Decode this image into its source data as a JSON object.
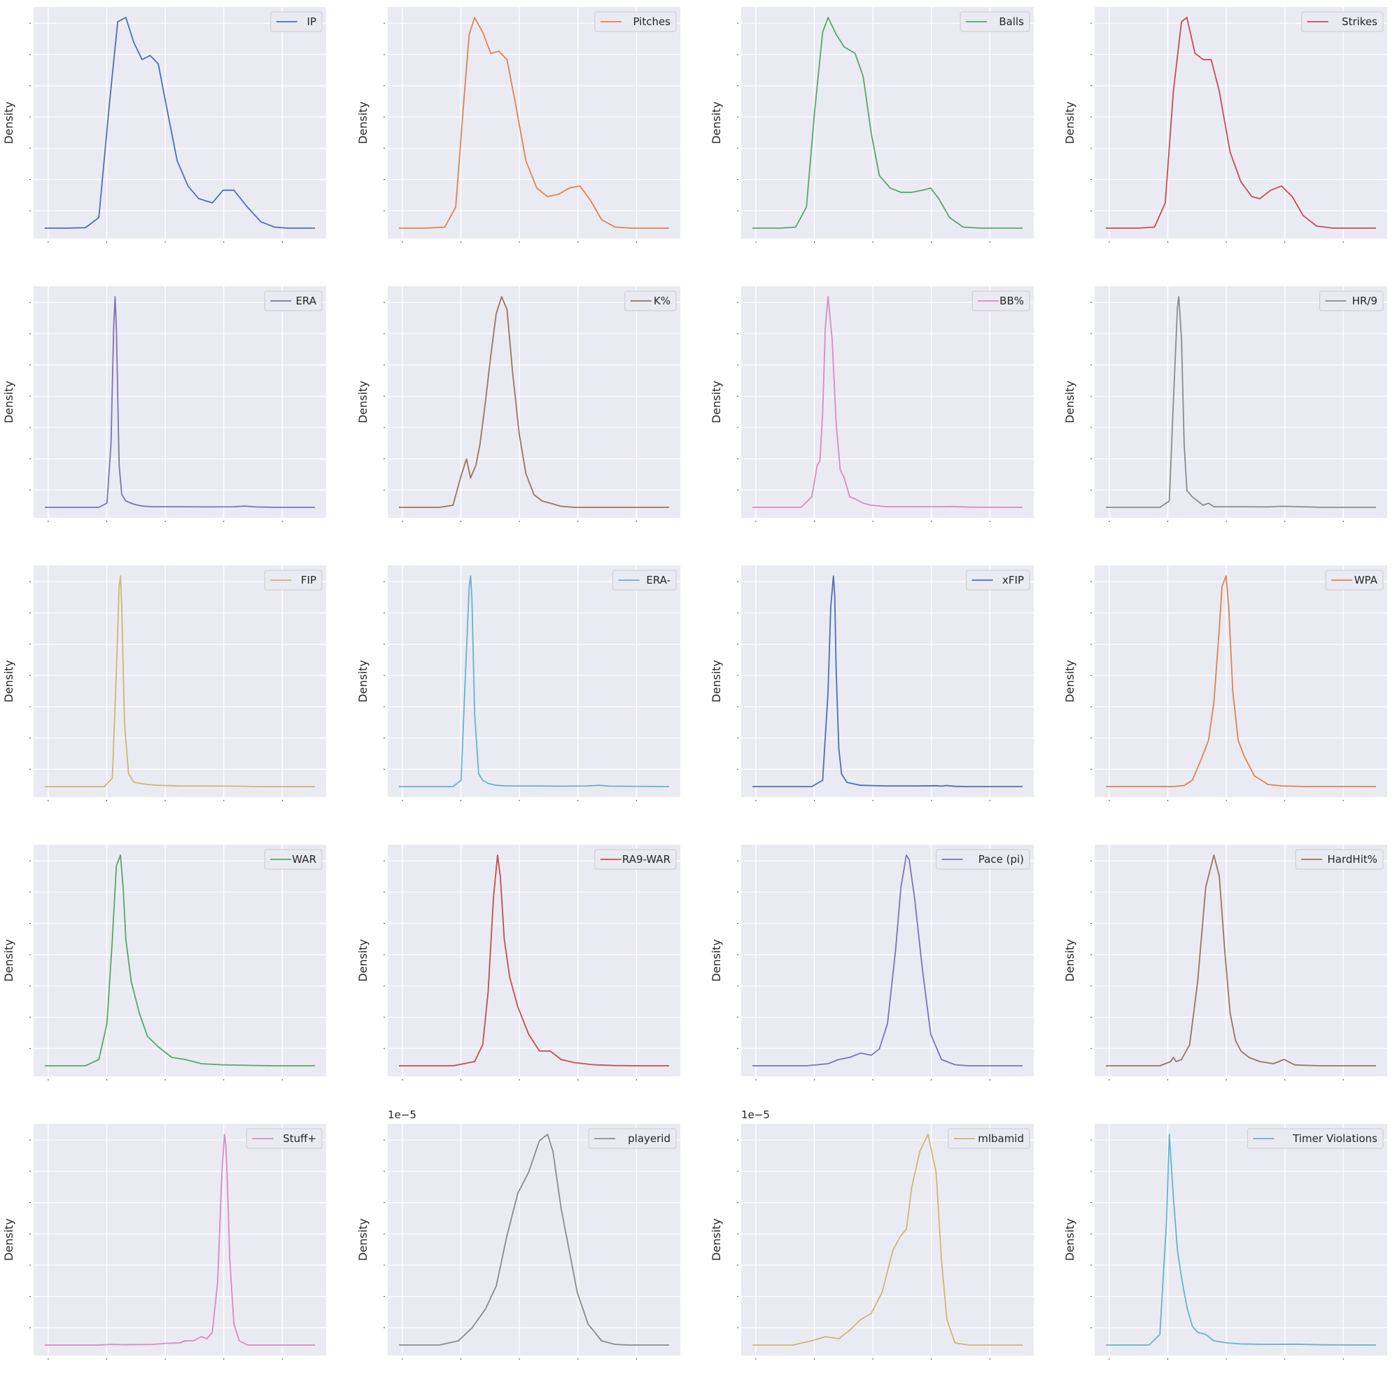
{
  "page": {
    "background": "#ffffff",
    "plot_bg": "#eaeaf2",
    "grid_color": "#ffffff"
  },
  "chart_data": [
    {
      "type": "line",
      "series": [
        {
          "name": "IP",
          "color": "#4c72b0"
        }
      ],
      "ylabel": "Density",
      "offset_label": "",
      "legend": "top-right",
      "grid": true,
      "x": [
        0.0,
        0.08,
        0.15,
        0.2,
        0.24,
        0.27,
        0.3,
        0.33,
        0.36,
        0.39,
        0.42,
        0.45,
        0.49,
        0.53,
        0.57,
        0.62,
        0.66,
        0.7,
        0.75,
        0.8,
        0.85,
        0.9,
        1.0
      ],
      "y": [
        0.0,
        0.0,
        0.002,
        0.05,
        0.6,
        0.98,
        1.0,
        0.88,
        0.8,
        0.82,
        0.78,
        0.58,
        0.32,
        0.2,
        0.14,
        0.12,
        0.18,
        0.18,
        0.1,
        0.03,
        0.005,
        0.0,
        0.0
      ]
    },
    {
      "type": "line",
      "series": [
        {
          "name": "Pitches",
          "color": "#dd8452"
        }
      ],
      "ylabel": "Density",
      "offset_label": "",
      "legend": "top-right",
      "grid": true,
      "x": [
        0.0,
        0.1,
        0.17,
        0.21,
        0.24,
        0.26,
        0.28,
        0.31,
        0.34,
        0.37,
        0.4,
        0.43,
        0.47,
        0.51,
        0.55,
        0.59,
        0.63,
        0.67,
        0.71,
        0.75,
        0.8,
        0.86,
        1.0
      ],
      "y": [
        0.0,
        0.0,
        0.005,
        0.1,
        0.6,
        0.92,
        1.0,
        0.93,
        0.83,
        0.84,
        0.8,
        0.6,
        0.32,
        0.19,
        0.15,
        0.16,
        0.19,
        0.2,
        0.13,
        0.04,
        0.005,
        0.0,
        0.0
      ]
    },
    {
      "type": "line",
      "series": [
        {
          "name": "Balls",
          "color": "#55a868"
        }
      ],
      "ylabel": "Density",
      "offset_label": "",
      "legend": "top-right",
      "grid": true,
      "x": [
        0.0,
        0.1,
        0.16,
        0.2,
        0.23,
        0.26,
        0.28,
        0.31,
        0.34,
        0.38,
        0.41,
        0.44,
        0.47,
        0.51,
        0.55,
        0.59,
        0.63,
        0.66,
        0.69,
        0.73,
        0.78,
        0.85,
        1.0
      ],
      "y": [
        0.0,
        0.0,
        0.005,
        0.1,
        0.55,
        0.93,
        1.0,
        0.92,
        0.86,
        0.83,
        0.72,
        0.45,
        0.25,
        0.19,
        0.17,
        0.17,
        0.18,
        0.19,
        0.14,
        0.05,
        0.005,
        0.0,
        0.0
      ]
    },
    {
      "type": "line",
      "series": [
        {
          "name": "Strikes",
          "color": "#c44e52"
        }
      ],
      "ylabel": "Density",
      "offset_label": "",
      "legend": "top-right",
      "grid": true,
      "x": [
        0.0,
        0.12,
        0.18,
        0.22,
        0.25,
        0.28,
        0.3,
        0.33,
        0.36,
        0.39,
        0.42,
        0.46,
        0.5,
        0.54,
        0.57,
        0.61,
        0.65,
        0.69,
        0.73,
        0.78,
        0.84,
        0.9,
        1.0
      ],
      "y": [
        0.0,
        0.0,
        0.005,
        0.12,
        0.65,
        0.98,
        1.0,
        0.83,
        0.8,
        0.8,
        0.65,
        0.36,
        0.22,
        0.15,
        0.14,
        0.18,
        0.2,
        0.15,
        0.06,
        0.01,
        0.0,
        0.0,
        0.0
      ]
    },
    {
      "type": "line",
      "series": [
        {
          "name": "ERA",
          "color": "#8172b3"
        }
      ],
      "ylabel": "Density",
      "offset_label": "",
      "legend": "top-right",
      "grid": true,
      "x": [
        0.0,
        0.2,
        0.23,
        0.245,
        0.255,
        0.26,
        0.265,
        0.275,
        0.285,
        0.3,
        0.33,
        0.36,
        0.4,
        0.5,
        0.6,
        0.7,
        0.74,
        0.78,
        0.85,
        1.0
      ],
      "y": [
        0.0,
        0.0,
        0.02,
        0.3,
        0.85,
        1.0,
        0.85,
        0.2,
        0.06,
        0.03,
        0.015,
        0.006,
        0.003,
        0.003,
        0.002,
        0.003,
        0.006,
        0.002,
        0.0,
        0.0
      ]
    },
    {
      "type": "line",
      "series": [
        {
          "name": "K%",
          "color": "#937860"
        }
      ],
      "ylabel": "Density",
      "offset_label": "",
      "legend": "top-right",
      "grid": true,
      "x": [
        0.0,
        0.15,
        0.2,
        0.23,
        0.25,
        0.265,
        0.285,
        0.3,
        0.32,
        0.34,
        0.36,
        0.38,
        0.4,
        0.42,
        0.445,
        0.47,
        0.5,
        0.53,
        0.56,
        0.6,
        0.65,
        0.72,
        1.0
      ],
      "y": [
        0.0,
        0.0,
        0.01,
        0.15,
        0.23,
        0.14,
        0.2,
        0.3,
        0.5,
        0.72,
        0.92,
        1.0,
        0.94,
        0.65,
        0.35,
        0.16,
        0.06,
        0.03,
        0.02,
        0.005,
        0.0,
        0.0,
        0.0
      ]
    },
    {
      "type": "line",
      "series": [
        {
          "name": "BB%",
          "color": "#da8bc3"
        }
      ],
      "ylabel": "Density",
      "offset_label": "",
      "legend": "top-right",
      "grid": true,
      "x": [
        0.0,
        0.18,
        0.22,
        0.24,
        0.25,
        0.26,
        0.27,
        0.28,
        0.295,
        0.31,
        0.325,
        0.34,
        0.36,
        0.38,
        0.41,
        0.44,
        0.5,
        0.7,
        0.74,
        0.8,
        1.0
      ],
      "y": [
        0.0,
        0.0,
        0.05,
        0.2,
        0.22,
        0.45,
        0.85,
        1.0,
        0.8,
        0.4,
        0.18,
        0.14,
        0.05,
        0.04,
        0.02,
        0.01,
        0.003,
        0.003,
        0.004,
        0.001,
        0.0
      ]
    },
    {
      "type": "line",
      "series": [
        {
          "name": "HR/9",
          "color": "#8c8c8c"
        }
      ],
      "ylabel": "Density",
      "offset_label": "",
      "legend": "top-right",
      "grid": true,
      "x": [
        0.0,
        0.2,
        0.235,
        0.25,
        0.265,
        0.27,
        0.28,
        0.29,
        0.3,
        0.32,
        0.36,
        0.38,
        0.4,
        0.5,
        0.6,
        0.65,
        0.75,
        0.8,
        1.0
      ],
      "y": [
        0.0,
        0.0,
        0.03,
        0.5,
        0.95,
        1.0,
        0.8,
        0.3,
        0.08,
        0.05,
        0.01,
        0.02,
        0.003,
        0.003,
        0.002,
        0.005,
        0.002,
        0.0,
        0.0
      ]
    },
    {
      "type": "line",
      "series": [
        {
          "name": "FIP",
          "color": "#ccb974"
        }
      ],
      "ylabel": "Density",
      "offset_label": "",
      "legend": "top-right",
      "grid": true,
      "x": [
        0.0,
        0.22,
        0.25,
        0.265,
        0.275,
        0.28,
        0.285,
        0.295,
        0.31,
        0.33,
        0.38,
        0.42,
        0.5,
        0.6,
        0.7,
        0.8,
        1.0
      ],
      "y": [
        0.0,
        0.0,
        0.04,
        0.55,
        0.95,
        1.0,
        0.85,
        0.3,
        0.06,
        0.02,
        0.01,
        0.006,
        0.003,
        0.003,
        0.002,
        0.0,
        0.0
      ]
    },
    {
      "type": "line",
      "series": [
        {
          "name": "ERA-",
          "color": "#64b5cd"
        }
      ],
      "ylabel": "Density",
      "offset_label": "",
      "legend": "top-right",
      "grid": true,
      "x": [
        0.0,
        0.2,
        0.23,
        0.245,
        0.26,
        0.265,
        0.27,
        0.28,
        0.295,
        0.31,
        0.33,
        0.36,
        0.4,
        0.5,
        0.6,
        0.7,
        0.74,
        0.78,
        1.0
      ],
      "y": [
        0.0,
        0.0,
        0.03,
        0.5,
        0.95,
        1.0,
        0.9,
        0.35,
        0.06,
        0.03,
        0.015,
        0.006,
        0.003,
        0.003,
        0.002,
        0.003,
        0.006,
        0.002,
        0.0
      ]
    },
    {
      "type": "line",
      "series": [
        {
          "name": "xFIP",
          "color": "#4c72b0"
        }
      ],
      "ylabel": "Density",
      "offset_label": "",
      "legend": "top-right",
      "grid": true,
      "x": [
        0.0,
        0.22,
        0.26,
        0.28,
        0.29,
        0.3,
        0.305,
        0.31,
        0.32,
        0.33,
        0.35,
        0.4,
        0.5,
        0.6,
        0.68,
        0.7,
        0.72,
        0.75,
        0.8,
        1.0
      ],
      "y": [
        0.0,
        0.0,
        0.03,
        0.45,
        0.85,
        1.0,
        0.9,
        0.55,
        0.18,
        0.06,
        0.02,
        0.006,
        0.003,
        0.003,
        0.004,
        0.002,
        0.005,
        0.001,
        0.0,
        0.0
      ]
    },
    {
      "type": "line",
      "series": [
        {
          "name": "WPA",
          "color": "#dd8452"
        }
      ],
      "ylabel": "Density",
      "offset_label": "",
      "legend": "top-right",
      "grid": true,
      "x": [
        0.0,
        0.25,
        0.29,
        0.32,
        0.35,
        0.38,
        0.4,
        0.42,
        0.43,
        0.445,
        0.455,
        0.47,
        0.49,
        0.51,
        0.53,
        0.55,
        0.57,
        0.6,
        0.65,
        0.75,
        1.0
      ],
      "y": [
        0.0,
        0.0,
        0.005,
        0.03,
        0.12,
        0.22,
        0.4,
        0.75,
        0.95,
        1.0,
        0.85,
        0.45,
        0.22,
        0.15,
        0.1,
        0.05,
        0.035,
        0.01,
        0.003,
        0.0,
        0.0
      ]
    },
    {
      "type": "line",
      "series": [
        {
          "name": "WAR",
          "color": "#55a868"
        }
      ],
      "ylabel": "Density",
      "offset_label": "",
      "legend": "top-right",
      "grid": true,
      "x": [
        0.0,
        0.15,
        0.2,
        0.23,
        0.25,
        0.265,
        0.28,
        0.29,
        0.3,
        0.32,
        0.35,
        0.38,
        0.42,
        0.47,
        0.52,
        0.58,
        0.65,
        0.75,
        0.85,
        1.0
      ],
      "y": [
        0.0,
        0.0,
        0.03,
        0.2,
        0.6,
        0.95,
        1.0,
        0.85,
        0.6,
        0.4,
        0.25,
        0.14,
        0.09,
        0.04,
        0.03,
        0.01,
        0.005,
        0.002,
        0.0,
        0.0
      ]
    },
    {
      "type": "line",
      "series": [
        {
          "name": "RA9-WAR",
          "color": "#c44e52"
        }
      ],
      "ylabel": "Density",
      "offset_label": "",
      "legend": "top-right",
      "grid": true,
      "x": [
        0.0,
        0.2,
        0.28,
        0.31,
        0.33,
        0.35,
        0.365,
        0.375,
        0.39,
        0.41,
        0.44,
        0.48,
        0.52,
        0.56,
        0.6,
        0.65,
        0.72,
        0.8,
        0.9,
        1.0
      ],
      "y": [
        0.0,
        0.0,
        0.02,
        0.1,
        0.35,
        0.8,
        1.0,
        0.9,
        0.6,
        0.42,
        0.28,
        0.15,
        0.07,
        0.07,
        0.03,
        0.015,
        0.005,
        0.001,
        0.0,
        0.0
      ]
    },
    {
      "type": "line",
      "series": [
        {
          "name": "Pace (pi)",
          "color": "#8172b3"
        }
      ],
      "ylabel": "Density",
      "offset_label": "",
      "legend": "top-right",
      "grid": true,
      "x": [
        0.0,
        0.2,
        0.28,
        0.32,
        0.36,
        0.4,
        0.44,
        0.47,
        0.5,
        0.53,
        0.55,
        0.57,
        0.58,
        0.6,
        0.63,
        0.66,
        0.7,
        0.75,
        0.8,
        1.0
      ],
      "y": [
        0.0,
        0.0,
        0.01,
        0.03,
        0.04,
        0.06,
        0.05,
        0.08,
        0.2,
        0.55,
        0.85,
        1.0,
        0.98,
        0.8,
        0.45,
        0.15,
        0.03,
        0.005,
        0.0,
        0.0
      ]
    },
    {
      "type": "line",
      "series": [
        {
          "name": "HardHit%",
          "color": "#937860"
        }
      ],
      "ylabel": "Density",
      "offset_label": "",
      "legend": "top-right",
      "grid": true,
      "x": [
        0.0,
        0.2,
        0.24,
        0.25,
        0.26,
        0.28,
        0.31,
        0.34,
        0.37,
        0.4,
        0.42,
        0.44,
        0.46,
        0.48,
        0.5,
        0.53,
        0.57,
        0.62,
        0.66,
        0.7,
        0.74,
        0.8,
        1.0
      ],
      "y": [
        0.0,
        0.0,
        0.02,
        0.04,
        0.02,
        0.03,
        0.1,
        0.4,
        0.85,
        1.0,
        0.9,
        0.55,
        0.25,
        0.12,
        0.07,
        0.04,
        0.02,
        0.01,
        0.03,
        0.004,
        0.002,
        0.0,
        0.0
      ]
    },
    {
      "type": "line",
      "series": [
        {
          "name": "Stuff+",
          "color": "#da8bc3"
        }
      ],
      "ylabel": "Density",
      "offset_label": "",
      "legend": "top-right",
      "grid": true,
      "x": [
        0.0,
        0.2,
        0.25,
        0.3,
        0.4,
        0.45,
        0.5,
        0.52,
        0.55,
        0.58,
        0.6,
        0.62,
        0.64,
        0.655,
        0.665,
        0.67,
        0.675,
        0.685,
        0.7,
        0.72,
        0.75,
        1.0
      ],
      "y": [
        0.0,
        0.0,
        0.003,
        0.001,
        0.003,
        0.008,
        0.01,
        0.02,
        0.02,
        0.04,
        0.03,
        0.06,
        0.3,
        0.8,
        1.0,
        0.95,
        0.8,
        0.4,
        0.1,
        0.02,
        0.0,
        0.0
      ]
    },
    {
      "type": "line",
      "series": [
        {
          "name": "playerid",
          "color": "#8c8c8c"
        }
      ],
      "ylabel": "Density",
      "offset_label": "1e−5",
      "legend": "top-right",
      "grid": true,
      "x": [
        0.0,
        0.15,
        0.22,
        0.27,
        0.32,
        0.36,
        0.4,
        0.44,
        0.48,
        0.52,
        0.55,
        0.57,
        0.6,
        0.63,
        0.66,
        0.7,
        0.75,
        0.8,
        0.85,
        1.0
      ],
      "y": [
        0.0,
        0.0,
        0.02,
        0.08,
        0.17,
        0.28,
        0.52,
        0.72,
        0.82,
        0.97,
        1.0,
        0.92,
        0.65,
        0.45,
        0.25,
        0.1,
        0.02,
        0.003,
        0.0,
        0.0
      ]
    },
    {
      "type": "line",
      "series": [
        {
          "name": "mlbamid",
          "color": "#ccb974"
        }
      ],
      "ylabel": "Density",
      "offset_label": "1e−5",
      "legend": "top-right",
      "grid": true,
      "x": [
        0.0,
        0.15,
        0.22,
        0.27,
        0.32,
        0.36,
        0.4,
        0.44,
        0.48,
        0.52,
        0.55,
        0.57,
        0.59,
        0.62,
        0.65,
        0.68,
        0.7,
        0.72,
        0.75,
        0.8,
        1.0
      ],
      "y": [
        0.0,
        0.0,
        0.02,
        0.04,
        0.03,
        0.07,
        0.12,
        0.15,
        0.25,
        0.45,
        0.52,
        0.55,
        0.75,
        0.92,
        1.0,
        0.82,
        0.4,
        0.12,
        0.01,
        0.0,
        0.0
      ]
    },
    {
      "type": "line",
      "series": [
        {
          "name": "Timer Violations",
          "color": "#64b5cd"
        }
      ],
      "ylabel": "Density",
      "offset_label": "",
      "legend": "top-right",
      "grid": true,
      "x": [
        0.0,
        0.16,
        0.2,
        0.225,
        0.235,
        0.25,
        0.265,
        0.28,
        0.3,
        0.32,
        0.34,
        0.37,
        0.4,
        0.45,
        0.5,
        0.6,
        0.7,
        0.8,
        1.0
      ],
      "y": [
        0.0,
        0.0,
        0.05,
        0.6,
        1.0,
        0.7,
        0.45,
        0.32,
        0.18,
        0.09,
        0.06,
        0.05,
        0.02,
        0.01,
        0.005,
        0.003,
        0.004,
        0.001,
        0.0
      ]
    }
  ]
}
